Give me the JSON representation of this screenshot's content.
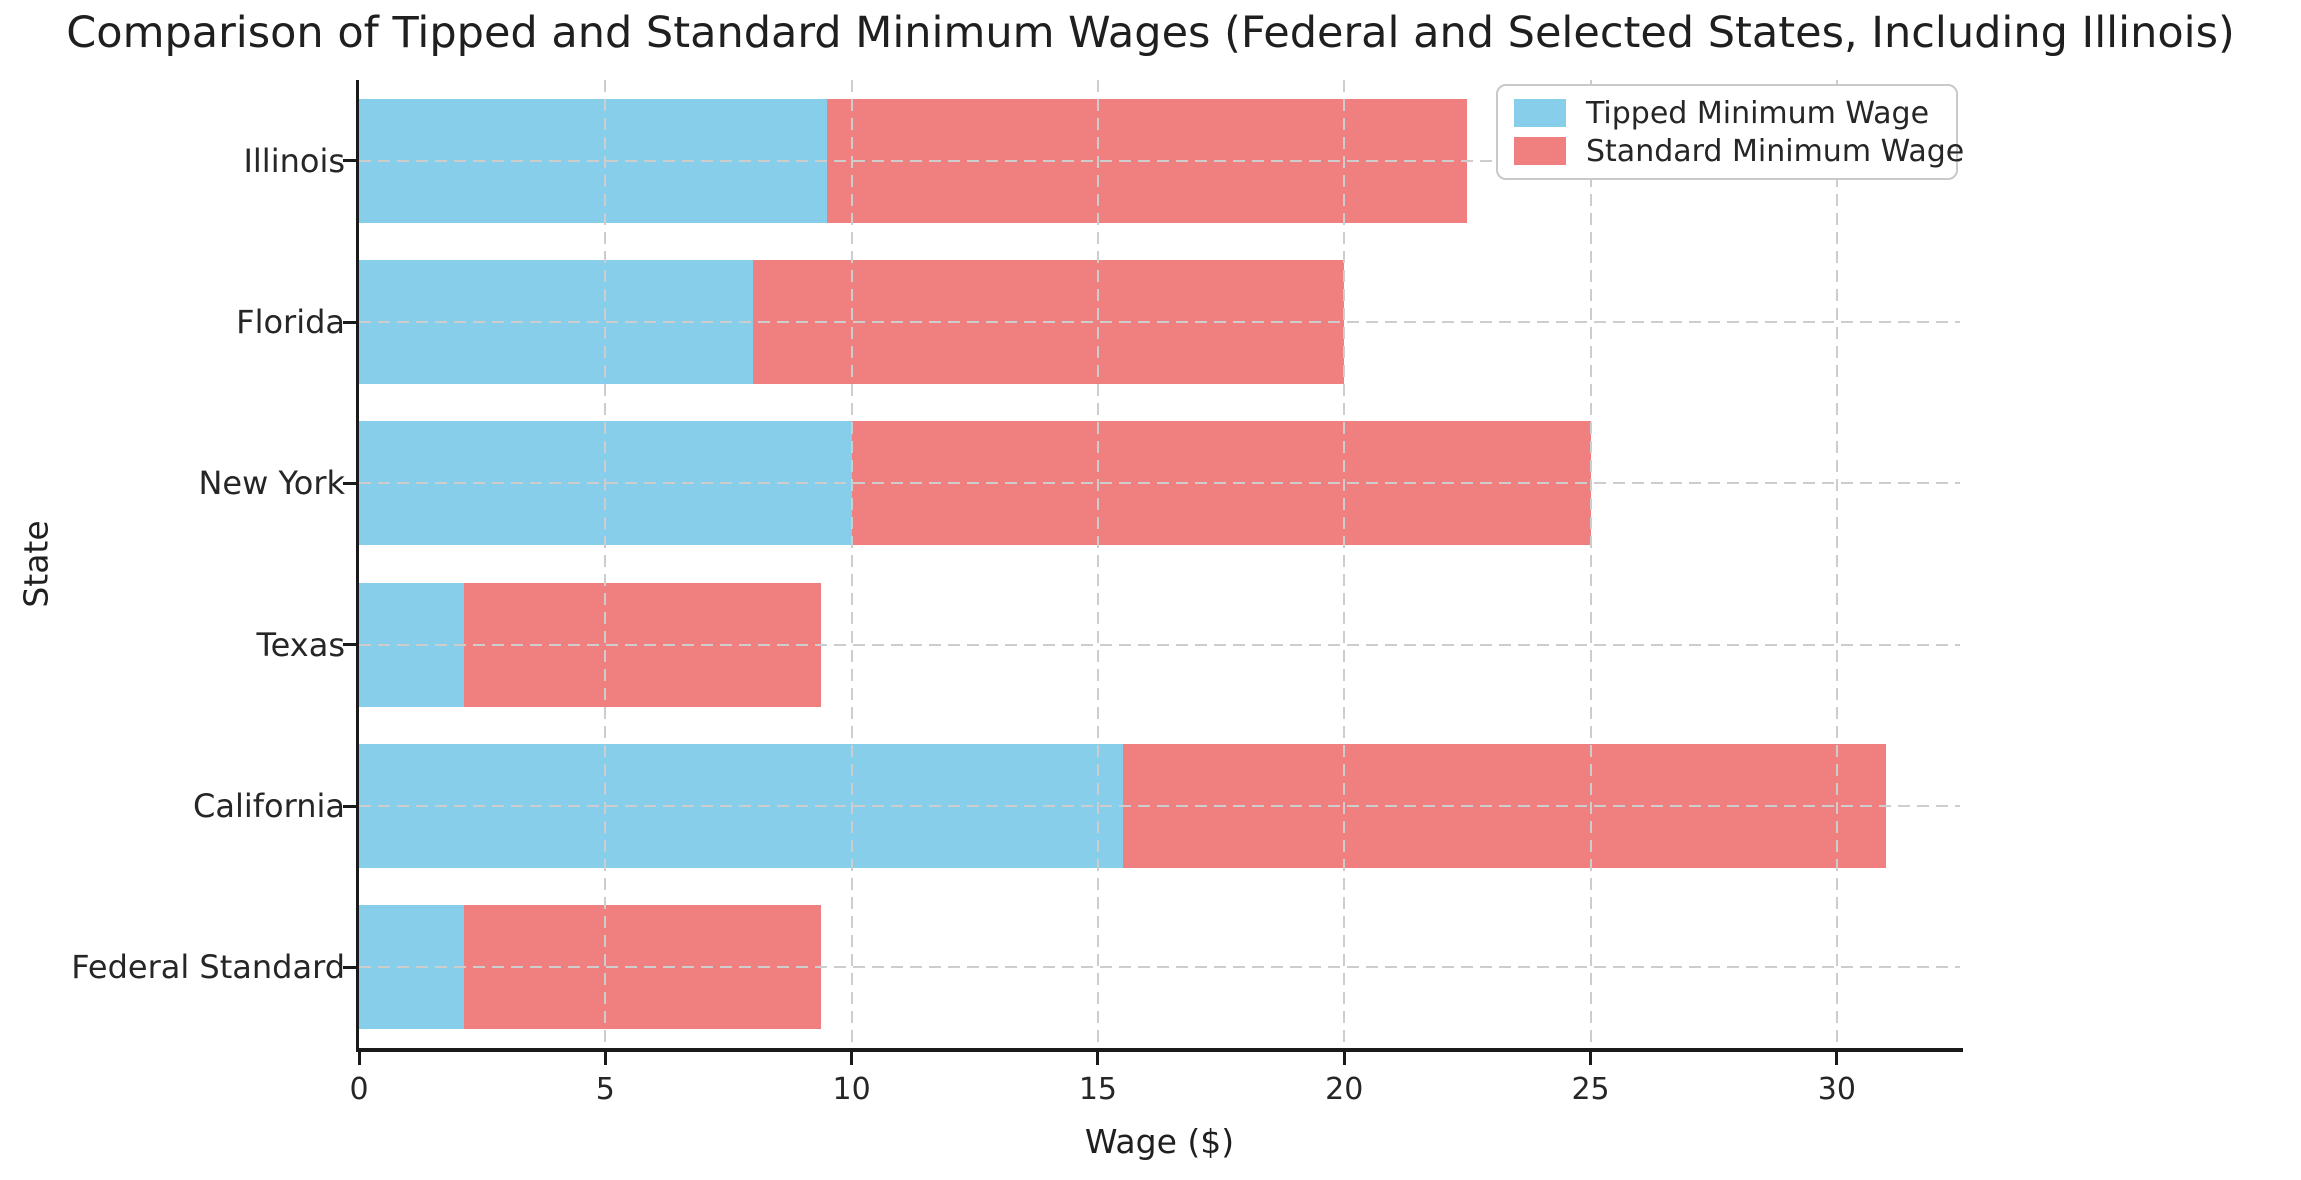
{
  "title": "Comparison of Tipped and Standard Minimum Wages (Federal and Selected States, Including Illinois)",
  "chart_data": {
    "type": "bar",
    "orientation": "horizontal",
    "stacked": true,
    "categories": [
      "Illinois",
      "Florida",
      "New York",
      "Texas",
      "California",
      "Federal Standard"
    ],
    "series": [
      {
        "name": "Tipped Minimum Wage",
        "color": "#87CEEB",
        "values": [
          9.5,
          8.0,
          10.0,
          2.13,
          15.5,
          2.13
        ]
      },
      {
        "name": "Standard Minimum Wage",
        "color": "#F08080",
        "values": [
          13.0,
          12.0,
          15.0,
          7.25,
          15.5,
          7.25
        ]
      }
    ],
    "stacked_totals": [
      22.5,
      20.0,
      25.0,
      9.38,
      31.0,
      9.38
    ],
    "title": "Comparison of Tipped and Standard Minimum Wages (Federal and Selected States, Including Illinois)",
    "xlabel": "Wage ($)",
    "ylabel": "State",
    "xlim": [
      0,
      32.5
    ],
    "xticks": [
      0,
      5,
      10,
      15,
      20,
      25,
      30
    ],
    "grid": "dashed, gray, drawn above bars",
    "legend_position": "upper right"
  },
  "colors": {
    "tipped_bar": "#87CEEB",
    "standard_bar": "#F08080",
    "gridline": "#cdcdcd",
    "spine": "#1a1a1a",
    "text": "#262626",
    "legend_border": "#c9c9c9",
    "background": "#ffffff"
  }
}
